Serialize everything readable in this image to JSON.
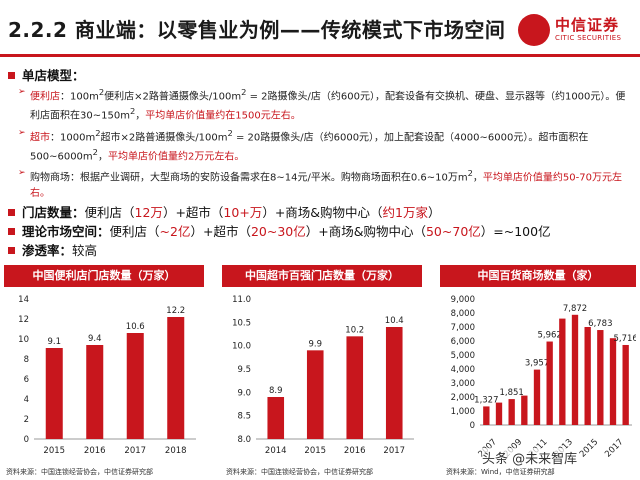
{
  "header": {
    "title": "2.2.2 商业端：以零售业为例——传统模式下市场空间",
    "logo_cn": "中信证券",
    "logo_en": "CITIC SECURITIES"
  },
  "section_store_model": {
    "heading": "单店模型：",
    "items": [
      {
        "label": "便利店",
        "text_1": "：100m",
        "sup_1": "2",
        "text_2": "便利店×2路普通摄像头/100m",
        "sup_2": "2",
        "text_3": " = 2路摄像头/店（约600元），配套设备有交换机、硬盘、显示器等（约1000元）。便利店面积在30~150m",
        "sup_3": "2",
        "text_4": "，",
        "highlight": "平均单店价值量约在1500元左右。"
      },
      {
        "label": "超市",
        "text_1": "：1000m",
        "sup_1": "2",
        "text_2": "超市×2路普通摄像头/100m",
        "sup_2": "2",
        "text_3": " = 20路摄像头/店（约6000元），加上配套设配（4000~6000元）。超市面积在500~6000m",
        "sup_3": "2",
        "text_4": "，",
        "highlight": "平均单店价值量约2万元左右。"
      },
      {
        "label": "购物商场",
        "text_1": "：根据产业调研，大型商场的安防设备需求在8~14元/平米。购物商场面积在0.6~10万m",
        "sup_1": "2",
        "text_2": "，",
        "highlight": "平均单店价值量约50-70万元左右。"
      }
    ]
  },
  "section_store_count": {
    "heading": "门店数量：",
    "p1": "便利店（",
    "v1": "12万",
    "p2": "）+超市（",
    "v2": "10+万",
    "p3": "）+商场&购物中心（",
    "v3": "约1万家",
    "p4": "）"
  },
  "section_market": {
    "heading": "理论市场空间：",
    "p1": "便利店（",
    "v1": "~2亿",
    "p2": "）+超市（",
    "v2": "20~30亿",
    "p3": "）+商场&购物中心（",
    "v3": "50~70亿",
    "p4": "）=~100亿"
  },
  "section_penetration": {
    "heading": "渗透率：",
    "value": "较高"
  },
  "chart_data": [
    {
      "type": "bar",
      "title": "中国便利店门店数量（万家）",
      "categories": [
        "2015",
        "2016",
        "2017",
        "2018"
      ],
      "values": [
        9.1,
        9.4,
        10.6,
        12.2
      ],
      "value_labels": [
        "9.1",
        "9.4",
        "10.6",
        "12.2"
      ],
      "ylim": [
        0,
        14
      ],
      "yticks": [
        "0",
        "2",
        "4",
        "6",
        "8",
        "10",
        "12",
        "14"
      ],
      "color": "#c8161d",
      "source": "资料来源：中国连锁经营协会，中信证券研究部"
    },
    {
      "type": "bar",
      "title": "中国超市百强门店数量（万家）",
      "categories": [
        "2014",
        "2015",
        "2016",
        "2017"
      ],
      "values": [
        8.9,
        9.9,
        10.2,
        10.4
      ],
      "value_labels": [
        "8.9",
        "9.9",
        "10.2",
        "10.4"
      ],
      "ylim": [
        8.0,
        11.0
      ],
      "yticks": [
        "8.0",
        "8.5",
        "9.0",
        "9.5",
        "10.0",
        "10.5",
        "11.0"
      ],
      "color": "#c8161d",
      "source": "资料来源：中国连锁经营协会，中信证券研究部"
    },
    {
      "type": "bar",
      "title": "中国百货商场数量（家）",
      "categories": [
        "2007",
        "2008",
        "2009",
        "2010",
        "2011",
        "2012",
        "2013",
        "2014",
        "2015",
        "2016",
        "2017",
        "2018"
      ],
      "tick_categories": [
        "2007",
        "2009",
        "2011",
        "2013",
        "2015",
        "2017"
      ],
      "values": [
        1327,
        1600,
        1851,
        2100,
        3957,
        5962,
        7600,
        7872,
        7000,
        6783,
        6200,
        5716
      ],
      "value_labels": [
        "1,327",
        "",
        "1,851",
        "",
        "3,957",
        "5,962",
        "",
        "7,872",
        "",
        "6,783",
        "",
        "5,716"
      ],
      "ylim": [
        0,
        9000
      ],
      "yticks": [
        "0",
        "1,000",
        "2,000",
        "3,000",
        "4,000",
        "5,000",
        "6,000",
        "7,000",
        "8,000",
        "9,000"
      ],
      "color": "#c8161d",
      "source": "资料来源：Wind，中信证券研究部"
    }
  ],
  "watermark": "头条 @未来智库"
}
